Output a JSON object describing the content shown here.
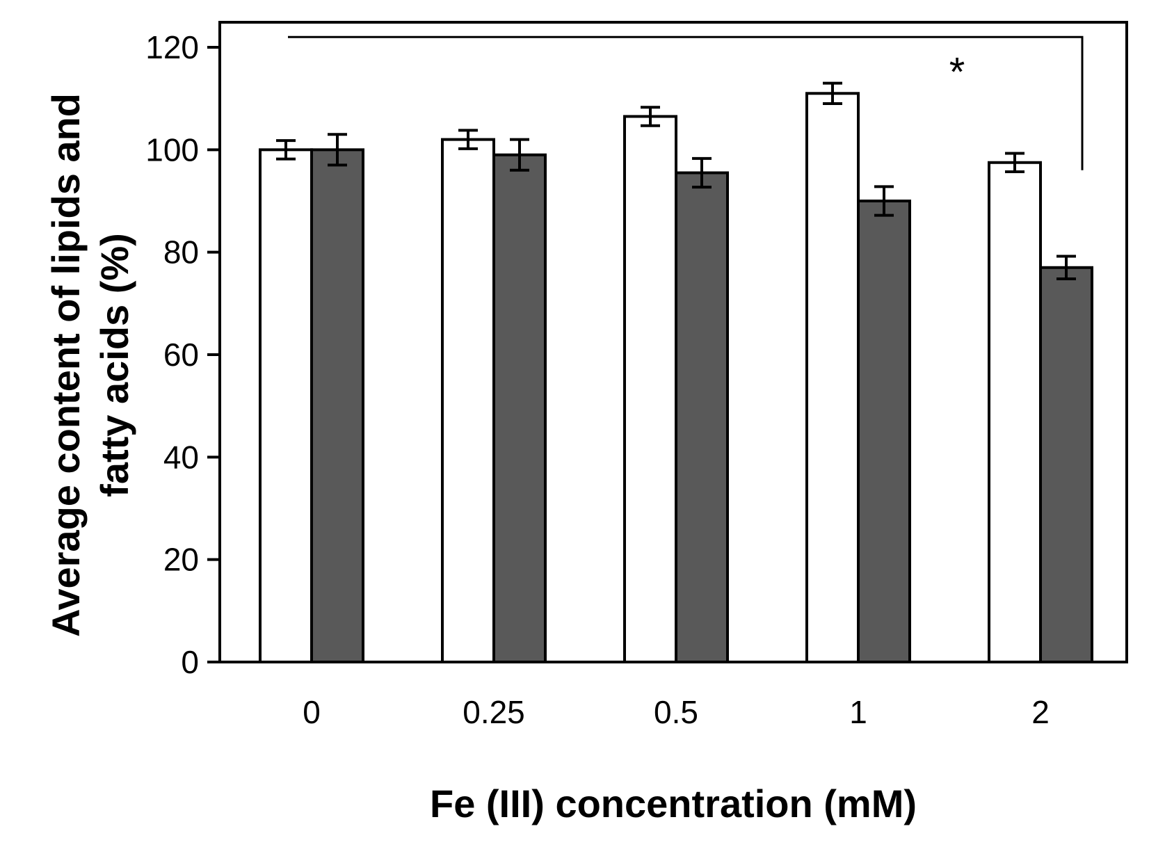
{
  "chart_data": {
    "type": "bar",
    "title": "",
    "xlabel": "Fe (III) concentration (mM)",
    "ylabel_lines": [
      "Average content of lipids and",
      "fatty acids (%)"
    ],
    "categories": [
      "0",
      "0.25",
      "0.5",
      "1",
      "2"
    ],
    "ylim": [
      0,
      120
    ],
    "yticks": [
      0,
      20,
      40,
      60,
      80,
      100,
      120
    ],
    "ytick_labels": [
      "0",
      "20",
      "40",
      "60",
      "80",
      "100",
      "120"
    ],
    "grid": false,
    "legend": false,
    "series": [
      {
        "name": "series-1",
        "fill": "#ffffff",
        "values": [
          100,
          102,
          106.5,
          111,
          97.5
        ],
        "errors": [
          1.8,
          1.8,
          1.8,
          2,
          1.8
        ]
      },
      {
        "name": "series-2",
        "fill": "#595959",
        "values": [
          100,
          99,
          95.5,
          90,
          77
        ],
        "errors": [
          3,
          3,
          2.8,
          2.8,
          2.2
        ]
      }
    ],
    "annotations": [
      {
        "type": "significance_bracket",
        "label": "*",
        "from_category": "0",
        "to_category": "2",
        "y": 122,
        "drop_to": 96
      }
    ]
  }
}
